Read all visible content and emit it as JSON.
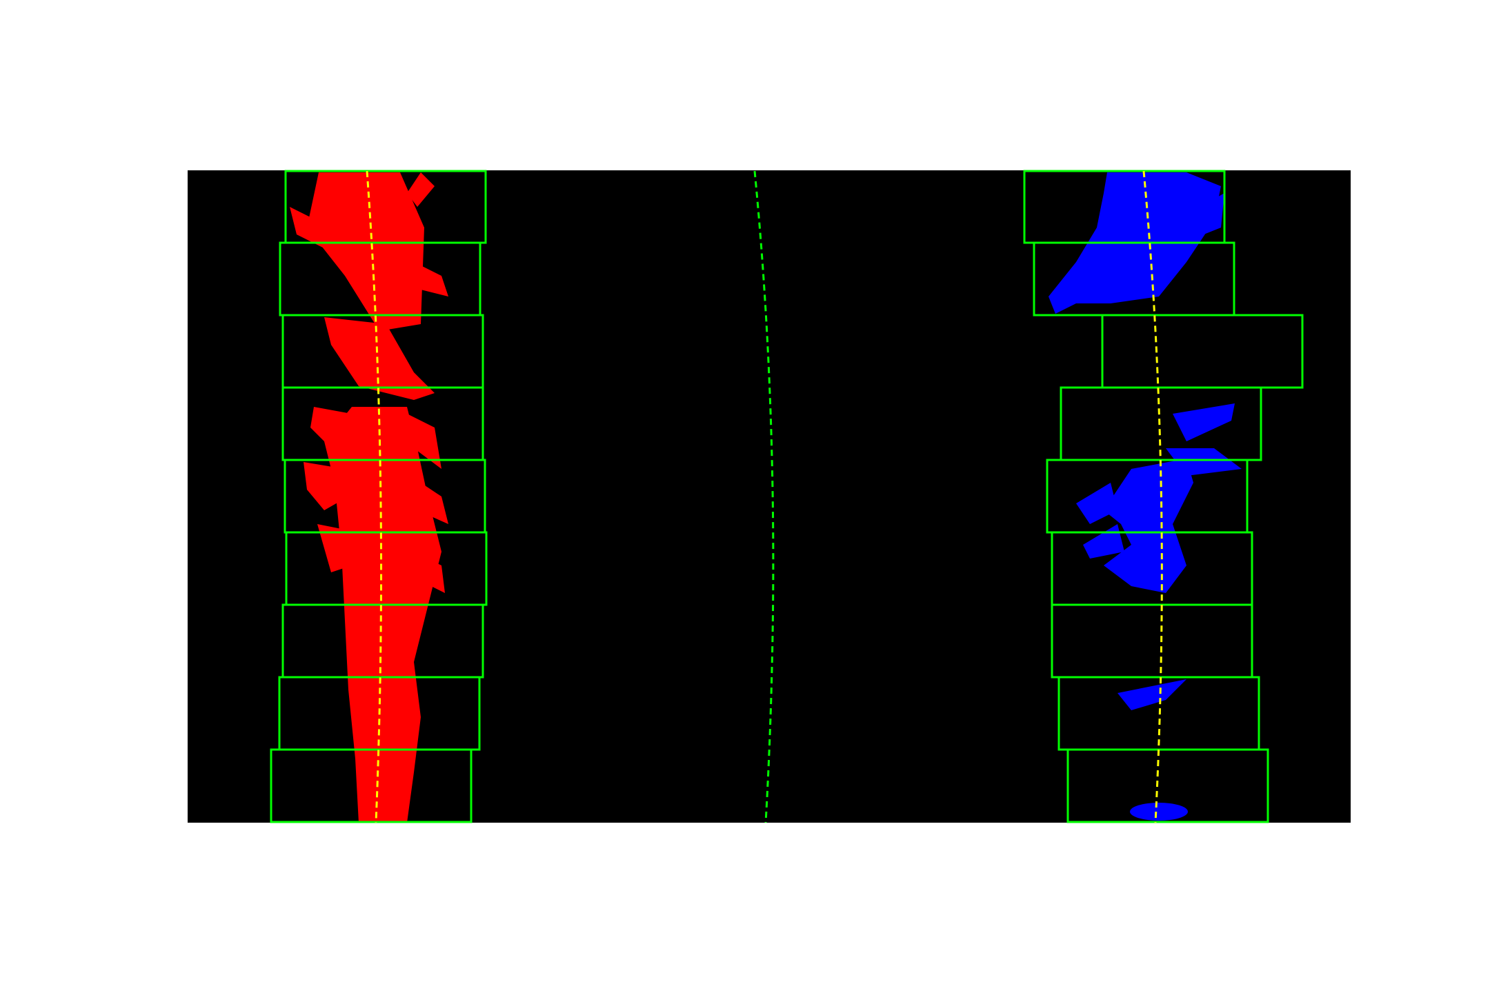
{
  "image": {
    "background": "#ffffff",
    "plot_background": "#000000",
    "window_color": "#00ff00",
    "left_lane_color": "#ff0000",
    "right_lane_color": "#0000ff",
    "fit_line_color": "#ffff00",
    "center_line_color": "#00ff00"
  },
  "windows": {
    "count_per_lane": 9
  }
}
